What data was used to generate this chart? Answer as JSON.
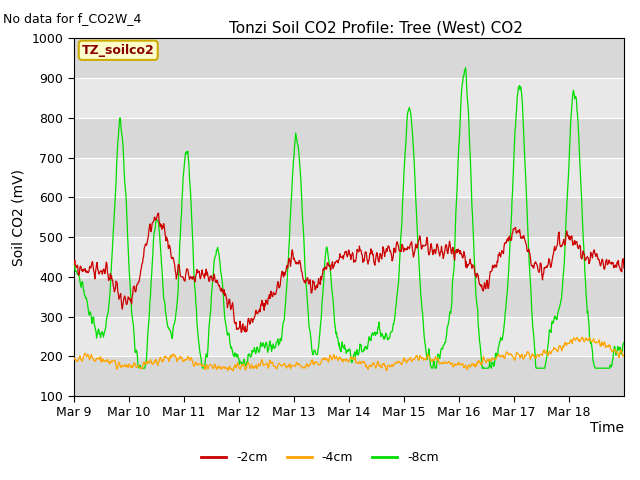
{
  "title": "Tonzi Soil CO2 Profile: Tree (West) CO2",
  "subtitle": "No data for f_CO2W_4",
  "ylabel": "Soil CO2 (mV)",
  "xlabel": "Time",
  "ylim": [
    100,
    1000
  ],
  "yticks": [
    100,
    200,
    300,
    400,
    500,
    600,
    700,
    800,
    900,
    1000
  ],
  "xtick_labels": [
    "Mar 9",
    "Mar 10",
    "Mar 11",
    "Mar 12",
    "Mar 13",
    "Mar 14",
    "Mar 15",
    "Mar 16",
    "Mar 17",
    "Mar 18"
  ],
  "legend_label": "TZ_soilco2",
  "legend_box_facecolor": "#ffffcc",
  "legend_box_edgecolor": "#ccaa00",
  "series_labels": [
    "-2cm",
    "-4cm",
    "-8cm"
  ],
  "series_colors": [
    "#cc0000",
    "#ffa500",
    "#00dd00"
  ],
  "background_color": "#ffffff",
  "plot_bg_light": "#e8e8e8",
  "plot_bg_dark": "#d0d0d0",
  "grid_color": "#ffffff",
  "title_fontsize": 11,
  "axis_label_fontsize": 10,
  "tick_fontsize": 9,
  "legend_fontsize": 9,
  "subtitle_fontsize": 9
}
